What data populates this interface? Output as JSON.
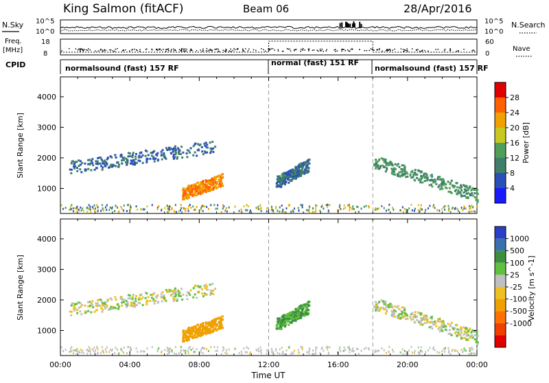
{
  "header": {
    "station": "King Salmon (fitACF)",
    "beam": "Beam 06",
    "date": "28/Apr/2016"
  },
  "strips": {
    "nsky_label": "N.Sky",
    "nsky_ticks": [
      "10^5",
      "10^0"
    ],
    "nsearch_label": "N.Search",
    "nsearch_ticks": [
      "10^5",
      "10^0"
    ],
    "freq_label_line1": "Freq.",
    "freq_label_line2": "[MHz]",
    "freq_ticks": [
      "18",
      "8"
    ],
    "nave_label": "Nave",
    "nave_ticks": [
      "60",
      "0"
    ],
    "cpid_label": "CPID",
    "cpid_segments": [
      {
        "label": "normalsound (fast) 157 RF",
        "start_hour": 0
      },
      {
        "label": "normal (fast) 151 RF",
        "start_hour": 12
      },
      {
        "label": "normalsound (fast) 157 RF",
        "start_hour": 18
      }
    ]
  },
  "colors": {
    "power": [
      "#1a1aff",
      "#2b4fb8",
      "#3f7f6a",
      "#4f9f5a",
      "#c8c820",
      "#f0a000",
      "#ff6000",
      "#e00000"
    ],
    "velocity": [
      "#2a3fc8",
      "#3a6fb0",
      "#3c8f3c",
      "#60c040",
      "#c0c0c0",
      "#f0c020",
      "#f0a000",
      "#ff7000",
      "#f04000",
      "#e00000"
    ]
  },
  "chart_data": [
    {
      "type": "heatmap",
      "title": "Power",
      "xlabel": "Time UT",
      "ylabel": "Slant Range [km]",
      "xlim_hours": [
        0,
        24
      ],
      "x_tick_labels": [
        "00:00",
        "04:00",
        "08:00",
        "12:00",
        "16:00",
        "20:00",
        "00:00"
      ],
      "ylim": [
        180,
        4650
      ],
      "y_tick_values": [
        1000,
        2000,
        3000,
        4000
      ],
      "colorbar": {
        "label": "Power [dB]",
        "range": [
          0,
          32
        ],
        "tick_labels": [
          "4",
          "8",
          "12",
          "16",
          "20",
          "24",
          "28"
        ]
      },
      "echo_regions": [
        {
          "t0": 0.5,
          "t1": 8.9,
          "r_start": 1700,
          "r_end": 2400,
          "level": 8
        },
        {
          "t0": 7.0,
          "t1": 9.3,
          "r_start": 850,
          "r_end": 1300,
          "level": 24
        },
        {
          "t0": 12.4,
          "t1": 14.3,
          "r_start": 1200,
          "r_end": 1800,
          "level": 8
        },
        {
          "t0": 18.0,
          "t1": 24.0,
          "r_start": 1900,
          "r_end": 800,
          "level": 12
        }
      ]
    },
    {
      "type": "heatmap",
      "title": "Velocity",
      "xlabel": "Time UT",
      "ylabel": "Slant Range [km]",
      "xlim_hours": [
        0,
        24
      ],
      "x_tick_labels": [
        "00:00",
        "04:00",
        "08:00",
        "12:00",
        "16:00",
        "20:00",
        "00:00"
      ],
      "ylim": [
        180,
        4650
      ],
      "y_tick_values": [
        1000,
        2000,
        3000,
        4000
      ],
      "colorbar": {
        "label": "Velocity [m s^-1]",
        "tick_labels": [
          "1000",
          "500",
          "100",
          "25",
          "-25",
          "-100",
          "-500",
          "-1000"
        ]
      },
      "echo_regions": [
        {
          "t0": 0.5,
          "t1": 8.9,
          "r_start": 1700,
          "r_end": 2400,
          "velocity": 0
        },
        {
          "t0": 7.0,
          "t1": 9.3,
          "r_start": 850,
          "r_end": 1300,
          "velocity": -300
        },
        {
          "t0": 12.4,
          "t1": 14.3,
          "r_start": 1200,
          "r_end": 1800,
          "velocity": 100
        },
        {
          "t0": 18.0,
          "t1": 24.0,
          "r_start": 1900,
          "r_end": 800,
          "velocity": 0
        }
      ]
    }
  ]
}
